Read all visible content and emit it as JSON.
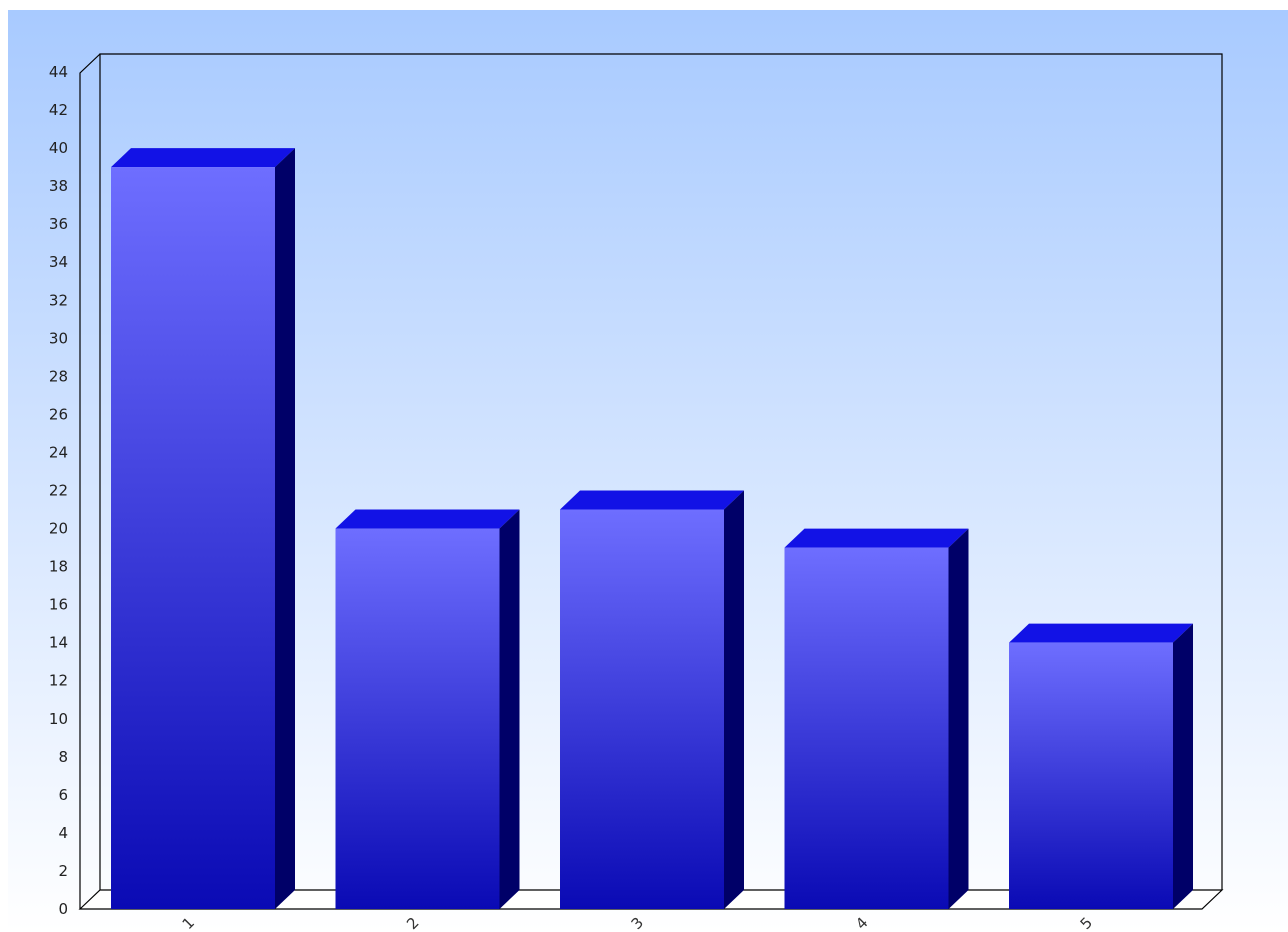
{
  "chart_data": {
    "type": "bar",
    "style": "3d",
    "categories": [
      "1",
      "2",
      "3",
      "4",
      "5"
    ],
    "values": [
      39,
      20,
      21,
      19,
      14
    ],
    "title": "",
    "xlabel": "",
    "ylabel": "",
    "ylim": [
      0,
      44
    ],
    "yticks": [
      "0",
      "2",
      "4",
      "6",
      "8",
      "10",
      "12",
      "14",
      "16",
      "18",
      "20",
      "22",
      "24",
      "26",
      "28",
      "30",
      "32",
      "34",
      "36",
      "38",
      "40",
      "42",
      "44"
    ],
    "grid": false,
    "legend": "none",
    "colors": {
      "background_top": "#a8caff",
      "background_bottom": "#ffffff",
      "bar_front_top": "#6e6eff",
      "bar_front_bottom": "#0a0ab4",
      "bar_top_face": "#1212e6",
      "bar_side_face": "#000068",
      "axis_line": "#000000"
    }
  }
}
